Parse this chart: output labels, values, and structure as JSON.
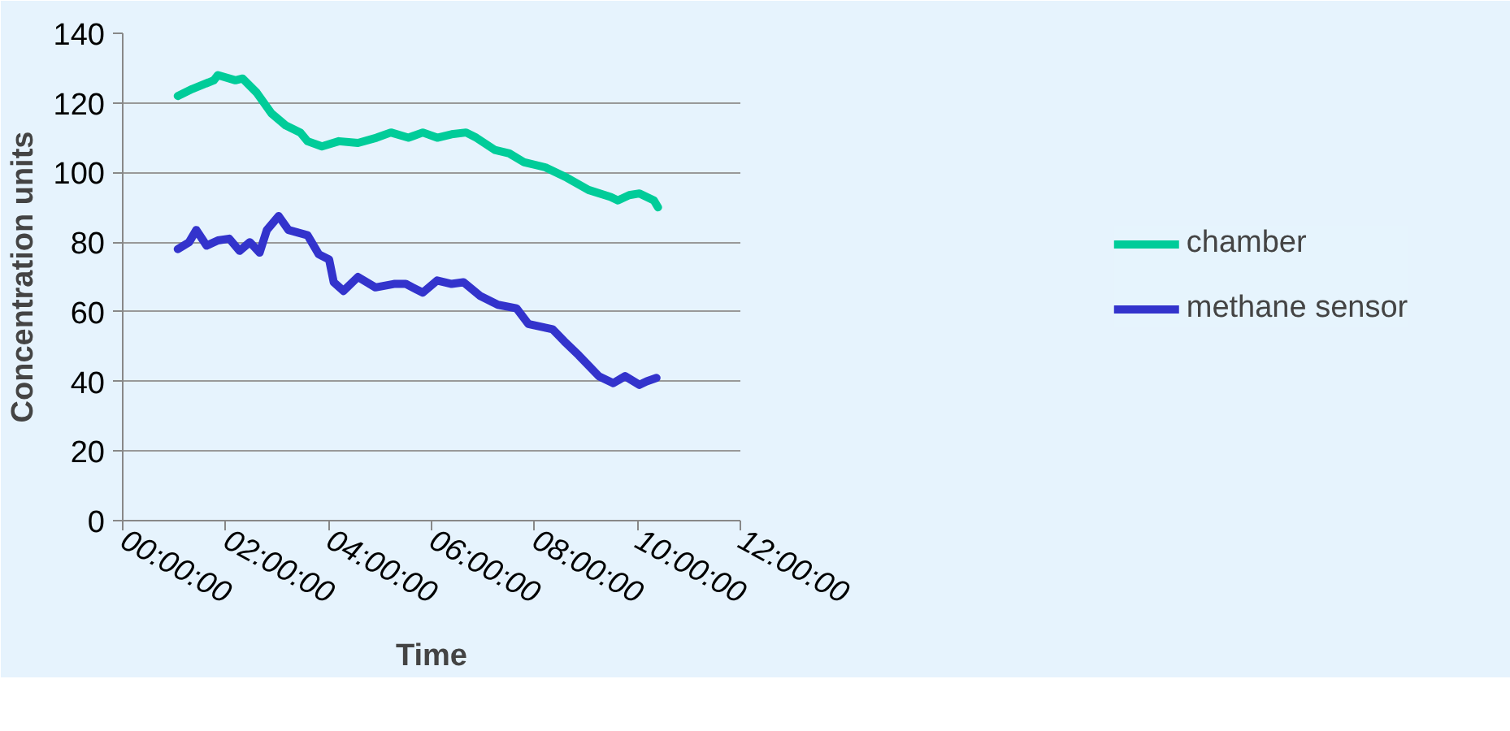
{
  "chart_data": {
    "type": "line",
    "xlabel": "Time",
    "ylabel": "Concentration units",
    "xlim": [
      0,
      12
    ],
    "ylim": [
      0,
      140
    ],
    "xticks": [
      {
        "value": 0,
        "label": "00:00:00"
      },
      {
        "value": 2,
        "label": "02:00:00"
      },
      {
        "value": 4,
        "label": "04:00:00"
      },
      {
        "value": 6,
        "label": "06:00:00"
      },
      {
        "value": 8,
        "label": "08:00:00"
      },
      {
        "value": 10,
        "label": "10:00:00"
      },
      {
        "value": 12,
        "label": "12:00:00"
      }
    ],
    "yticks": [
      0,
      20,
      40,
      60,
      80,
      100,
      120,
      140
    ],
    "grid": "y",
    "legend": "right",
    "marker": "none",
    "line_style": "solid",
    "series": [
      {
        "name": "chamber",
        "color": "#00cc99",
        "x": [
          1.07,
          1.35,
          1.77,
          1.85,
          2.19,
          2.33,
          2.6,
          2.89,
          3.17,
          3.45,
          3.59,
          3.87,
          4.2,
          4.57,
          4.93,
          5.21,
          5.55,
          5.83,
          6.11,
          6.39,
          6.67,
          6.87,
          7.23,
          7.51,
          7.79,
          8.21,
          8.63,
          9.05,
          9.48,
          9.62,
          9.84,
          10.04,
          10.32,
          10.4
        ],
        "values": [
          122,
          124,
          126.5,
          128,
          126.5,
          127,
          123,
          117,
          113.5,
          111.5,
          109,
          107.5,
          109,
          108.5,
          110,
          111.5,
          110,
          111.5,
          110,
          111,
          111.5,
          110,
          106.5,
          105.5,
          103,
          101.5,
          98.5,
          95,
          93,
          92,
          93.5,
          94,
          92,
          90
        ]
      },
      {
        "name": "methane sensor",
        "color": "#3333cc",
        "x": [
          1.07,
          1.29,
          1.43,
          1.63,
          1.85,
          2.07,
          2.27,
          2.47,
          2.66,
          2.8,
          3.03,
          3.22,
          3.59,
          3.81,
          4.01,
          4.1,
          4.29,
          4.57,
          4.91,
          5.27,
          5.5,
          5.83,
          6.11,
          6.39,
          6.62,
          6.95,
          7.29,
          7.65,
          7.88,
          8.35,
          8.58,
          8.86,
          9.25,
          9.53,
          9.76,
          10.04,
          10.18,
          10.37
        ],
        "values": [
          78,
          80,
          83.5,
          79,
          80.5,
          81,
          77.5,
          80,
          77,
          83.5,
          87.5,
          83.5,
          82,
          76.5,
          75,
          68.5,
          66,
          70,
          67,
          68,
          68,
          65.5,
          69,
          68,
          68.5,
          64.5,
          62,
          61,
          56.5,
          55,
          51.5,
          47.5,
          41.5,
          39.5,
          41.5,
          39,
          40,
          41
        ]
      }
    ]
  }
}
